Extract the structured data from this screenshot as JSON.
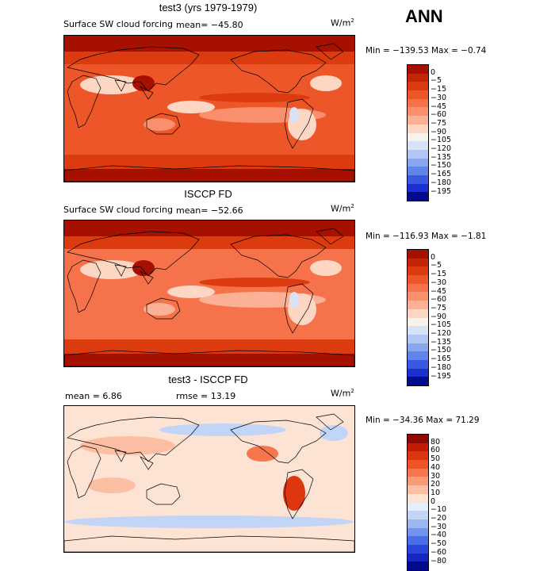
{
  "season_label": "ANN",
  "unit_base": "W/m",
  "unit_exp": "2",
  "panels": [
    {
      "title": "test3 (yrs 1979-1979)",
      "variable": "Surface SW cloud forcing",
      "mean_text": "mean= −45.80",
      "rmse_text": "",
      "minmax_text": "Min = −139.53  Max =  −0.74"
    },
    {
      "title": "ISCCP FD",
      "variable": "Surface SW cloud forcing",
      "mean_text": "mean= −52.66",
      "rmse_text": "",
      "minmax_text": "Min = −116.93  Max =  −1.81"
    },
    {
      "title": "test3 - ISCCP FD",
      "variable": "",
      "mean_text": "mean =    6.86",
      "rmse_text": "rmse =   13.19",
      "minmax_text": "Min = −34.36  Max =  71.29"
    }
  ],
  "chart_data": [
    {
      "type": "heatmap",
      "title": "test3 (yrs 1979-1979)",
      "subtitle": "Surface SW cloud forcing",
      "units": "W/m^2",
      "mean": -45.8,
      "min": -139.53,
      "max": -0.74,
      "colorbar_levels": [
        "0",
        "−5",
        "−15",
        "−30",
        "−45",
        "−60",
        "−75",
        "−90",
        "−105",
        "−120",
        "−135",
        "−150",
        "−165",
        "−180",
        "−195"
      ],
      "colorbar_colors": [
        "#a51000",
        "#c32606",
        "#dc3b10",
        "#ec5628",
        "#f5724a",
        "#f98f6c",
        "#fcb196",
        "#fed7c4",
        "#f8f2ec",
        "#d8e3f8",
        "#b0c7f3",
        "#8aa6ee",
        "#5f85ea",
        "#3a58e0",
        "#1b30cf",
        "#000c8c"
      ]
    },
    {
      "type": "heatmap",
      "title": "ISCCP FD",
      "subtitle": "Surface SW cloud forcing",
      "units": "W/m^2",
      "mean": -52.66,
      "min": -116.93,
      "max": -1.81,
      "colorbar_levels": [
        "0",
        "−5",
        "−15",
        "−30",
        "−45",
        "−60",
        "−75",
        "−90",
        "−105",
        "−120",
        "−135",
        "−150",
        "−165",
        "−180",
        "−195"
      ],
      "colorbar_colors": [
        "#a51000",
        "#c32606",
        "#dc3b10",
        "#ec5628",
        "#f5724a",
        "#f98f6c",
        "#fcb196",
        "#fed7c4",
        "#f8f2ec",
        "#d8e3f8",
        "#b0c7f3",
        "#8aa6ee",
        "#5f85ea",
        "#3a58e0",
        "#1b30cf",
        "#000c8c"
      ]
    },
    {
      "type": "heatmap",
      "title": "test3 - ISCCP FD",
      "units": "W/m^2",
      "mean": 6.86,
      "rmse": 13.19,
      "min": -34.36,
      "max": 71.29,
      "colorbar_levels": [
        "80",
        "60",
        "50",
        "40",
        "30",
        "20",
        "10",
        "0",
        "−10",
        "−20",
        "−30",
        "−40",
        "−50",
        "−60",
        "−80"
      ],
      "colorbar_colors": [
        "#8e0a00",
        "#c21d04",
        "#de3610",
        "#ef5428",
        "#f7764d",
        "#fb9a76",
        "#fdbfa3",
        "#fde3d4",
        "#e6eefb",
        "#c3d5f6",
        "#9db8f1",
        "#7394ec",
        "#4a6ee6",
        "#2a46da",
        "#1526c2",
        "#000a8a"
      ]
    }
  ]
}
